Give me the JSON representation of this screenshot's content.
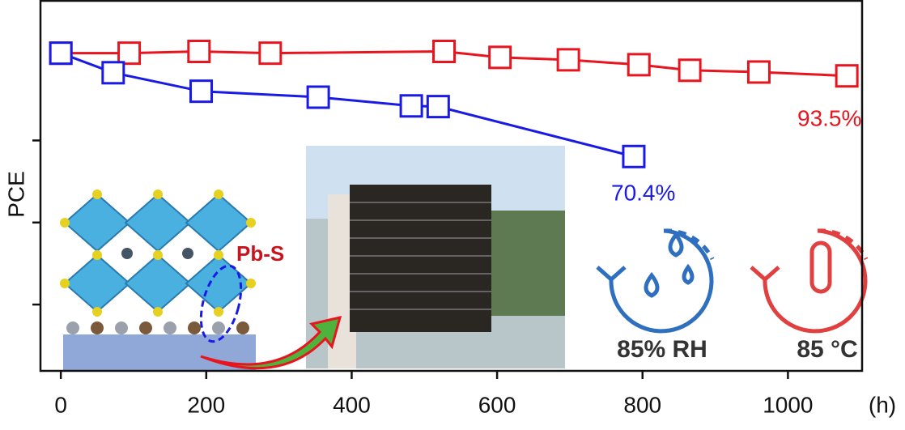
{
  "chart_data": {
    "type": "line",
    "y_label": "PCE",
    "x_unit_label": "(h)",
    "xlim": [
      -28,
      1102
    ],
    "xticks": [
      0,
      200,
      400,
      600,
      800,
      1000
    ],
    "ylim": [
      9,
      115
    ],
    "yticks": [
      28,
      51.5,
      75
    ],
    "series": [
      {
        "name": "85 °C",
        "color": "#e8141e",
        "x": [
          0,
          94,
          190,
          288,
          527,
          604,
          698,
          795,
          865,
          960,
          1081
        ],
        "values": [
          100,
          100,
          100.5,
          100,
          100.5,
          98.8,
          98.1,
          96.7,
          95.1,
          94.6,
          93.5
        ]
      },
      {
        "name": "85% RH",
        "color": "#1a1ae6",
        "x": [
          0,
          72,
          193,
          354,
          482,
          519,
          788
        ],
        "values": [
          100,
          94.4,
          89.1,
          87.4,
          84.9,
          84.7,
          70.4
        ]
      }
    ],
    "annotations": [
      "93.5%",
      "70.4%",
      "Pb-S",
      "85% RH",
      "85 °C"
    ]
  }
}
